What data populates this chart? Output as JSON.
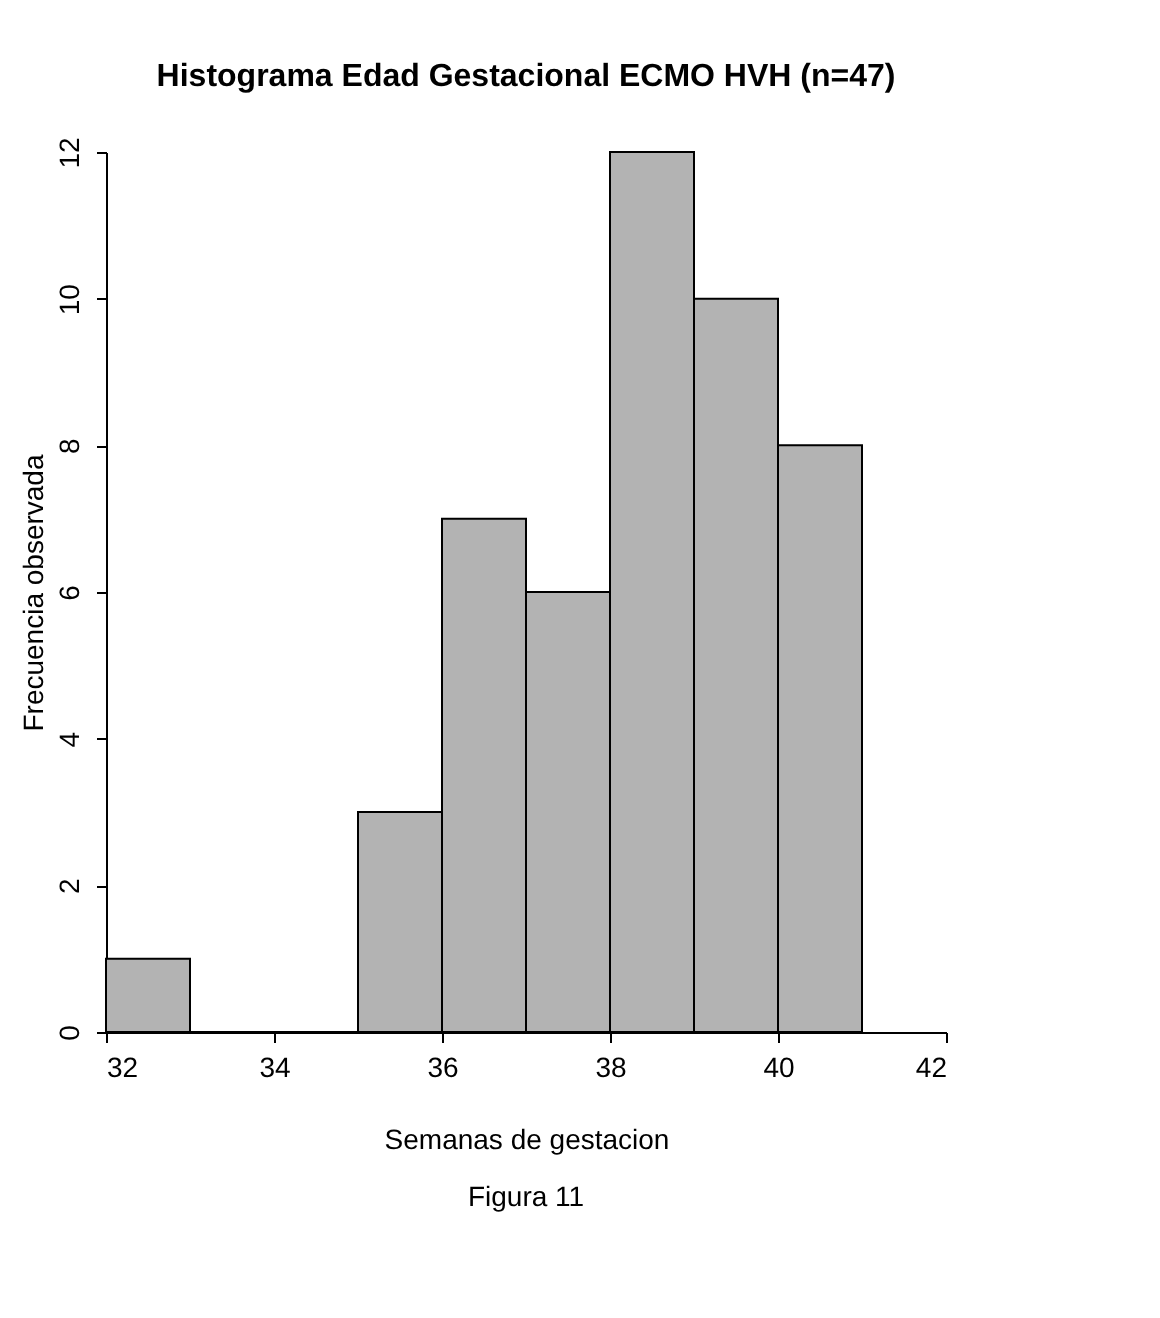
{
  "chart_data": {
    "type": "histogram",
    "title": "Histograma Edad Gestacional ECMO HVH (n=47)",
    "xlabel": "Semanas de gestacion",
    "ylabel": "Frecuencia observada",
    "bins": [
      32,
      33,
      34,
      35,
      36,
      37,
      38,
      39,
      40,
      41
    ],
    "values": [
      1,
      0,
      0,
      3,
      7,
      6,
      12,
      10,
      8
    ],
    "color": "#b3b3b3",
    "xlim": [
      32,
      42
    ],
    "xticks": [
      32,
      34,
      36,
      38,
      40,
      42
    ],
    "ylim": [
      0,
      12
    ],
    "yticks": [
      0,
      2,
      4,
      6,
      8,
      10,
      12
    ],
    "grid": false,
    "annotations": [
      "Figura 11"
    ]
  }
}
